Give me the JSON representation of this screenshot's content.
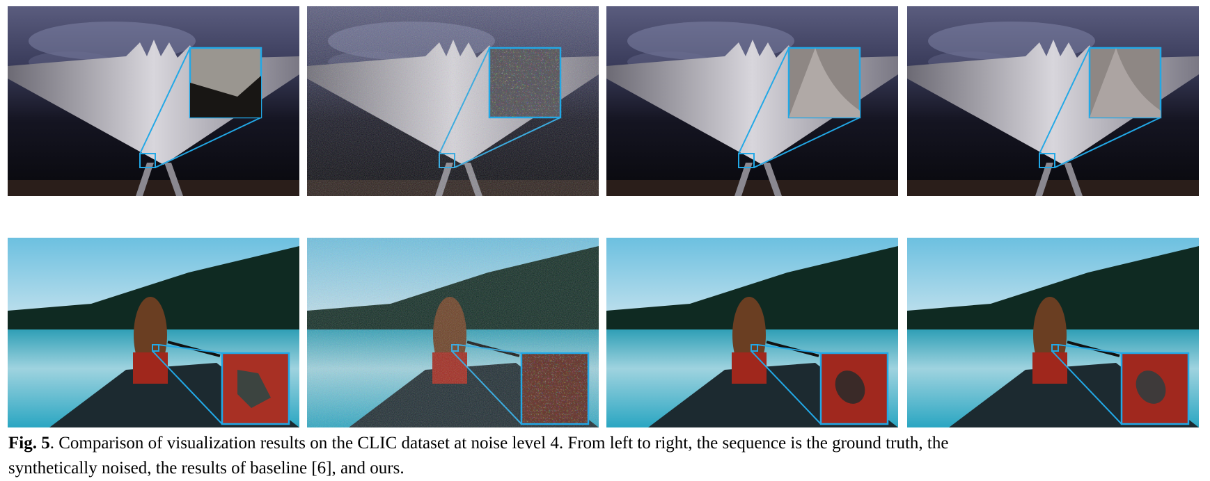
{
  "caption": {
    "label": "Fig. 5",
    "lines": [
      ". Comparison of visualization results on the CLIC dataset at noise level 4. From left to right, the sequence is the ground truth, the",
      "synthetically noised, the results of baseline [6], and ours."
    ]
  }
}
